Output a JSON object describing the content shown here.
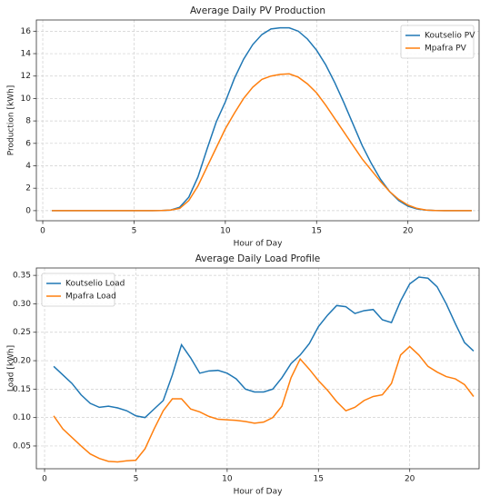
{
  "chart_data": [
    {
      "type": "line",
      "title": "Average Daily PV Production",
      "xlabel": "Hour of Day",
      "ylabel": "Production [kWh]",
      "x": [
        0.5,
        1,
        1.5,
        2,
        2.5,
        3,
        3.5,
        4,
        4.5,
        5,
        5.5,
        6,
        6.5,
        7,
        7.5,
        8,
        8.5,
        9,
        9.5,
        10,
        10.5,
        11,
        11.5,
        12,
        12.5,
        13,
        13.5,
        14,
        14.5,
        15,
        15.5,
        16,
        16.5,
        17,
        17.5,
        18,
        18.5,
        19,
        19.5,
        20,
        20.5,
        21,
        21.5,
        22,
        22.5,
        23,
        23.5
      ],
      "series": [
        {
          "name": "Koutselio PV",
          "color": "#1f77b4",
          "values": [
            0,
            0,
            0,
            0,
            0,
            0,
            0,
            0,
            0,
            0,
            0,
            0,
            0.01,
            0.05,
            0.3,
            1.2,
            3.0,
            5.5,
            7.9,
            9.7,
            11.8,
            13.5,
            14.8,
            15.7,
            16.2,
            16.3,
            16.3,
            16.0,
            15.3,
            14.3,
            13.0,
            11.4,
            9.6,
            7.7,
            5.8,
            4.2,
            2.8,
            1.7,
            0.9,
            0.4,
            0.15,
            0.05,
            0.01,
            0,
            0,
            0,
            0
          ]
        },
        {
          "name": "Mpafra PV",
          "color": "#ff7f0e",
          "values": [
            0,
            0,
            0,
            0,
            0,
            0,
            0,
            0,
            0,
            0,
            0,
            0,
            0.01,
            0.05,
            0.2,
            0.9,
            2.2,
            3.9,
            5.6,
            7.3,
            8.7,
            10.0,
            11.0,
            11.7,
            12.0,
            12.15,
            12.2,
            11.9,
            11.3,
            10.5,
            9.4,
            8.2,
            7.0,
            5.8,
            4.6,
            3.6,
            2.6,
            1.7,
            1.0,
            0.5,
            0.2,
            0.05,
            0.01,
            0,
            0,
            0,
            0
          ]
        }
      ],
      "xlim": [
        -0.35,
        23.9
      ],
      "ylim": [
        -0.9,
        17
      ],
      "xticks": [
        0,
        5,
        10,
        15,
        20
      ],
      "yticks": [
        0,
        2,
        4,
        6,
        8,
        10,
        12,
        14,
        16
      ],
      "grid": true,
      "legend": "upper right"
    },
    {
      "type": "line",
      "title": "Average Daily Load Profile",
      "xlabel": "Hour of Day",
      "ylabel": "Load [kWh]",
      "x": [
        0.5,
        1,
        1.5,
        2,
        2.5,
        3,
        3.5,
        4,
        4.5,
        5,
        5.5,
        6,
        6.5,
        7,
        7.5,
        8,
        8.5,
        9,
        9.5,
        10,
        10.5,
        11,
        11.5,
        12,
        12.5,
        13,
        13.5,
        14,
        14.5,
        15,
        15.5,
        16,
        16.5,
        17,
        17.5,
        18,
        18.5,
        19,
        19.5,
        20,
        20.5,
        21,
        21.5,
        22,
        22.5,
        23,
        23.5
      ],
      "series": [
        {
          "name": "Koutselio Load",
          "color": "#1f77b4",
          "values": [
            0.19,
            0.175,
            0.16,
            0.14,
            0.125,
            0.118,
            0.12,
            0.117,
            0.112,
            0.103,
            0.1,
            0.115,
            0.13,
            0.175,
            0.228,
            0.205,
            0.178,
            0.182,
            0.183,
            0.178,
            0.168,
            0.15,
            0.145,
            0.145,
            0.15,
            0.17,
            0.195,
            0.21,
            0.23,
            0.26,
            0.28,
            0.297,
            0.295,
            0.283,
            0.288,
            0.29,
            0.272,
            0.267,
            0.305,
            0.335,
            0.347,
            0.345,
            0.33,
            0.3,
            0.265,
            0.232,
            0.217
          ]
        },
        {
          "name": "Mpafra Load",
          "color": "#ff7f0e",
          "values": [
            0.103,
            0.08,
            0.065,
            0.05,
            0.036,
            0.028,
            0.023,
            0.022,
            0.024,
            0.025,
            0.045,
            0.08,
            0.112,
            0.133,
            0.133,
            0.115,
            0.11,
            0.102,
            0.097,
            0.096,
            0.095,
            0.093,
            0.09,
            0.092,
            0.1,
            0.12,
            0.17,
            0.203,
            0.185,
            0.165,
            0.148,
            0.128,
            0.112,
            0.118,
            0.13,
            0.137,
            0.14,
            0.16,
            0.21,
            0.225,
            0.21,
            0.19,
            0.18,
            0.172,
            0.168,
            0.158,
            0.137
          ]
        }
      ],
      "xlim": [
        -0.45,
        23.8
      ],
      "ylim": [
        0.01,
        0.363
      ],
      "xticks": [
        0,
        5,
        10,
        15,
        20
      ],
      "yticks": [
        0.05,
        {
          "value": 0.1,
          "label": "0.10"
        },
        0.15,
        {
          "value": 0.2,
          "label": "0.20"
        },
        0.25,
        {
          "value": 0.3,
          "label": "0.30"
        },
        0.35
      ],
      "grid": true,
      "legend": "upper left"
    }
  ]
}
